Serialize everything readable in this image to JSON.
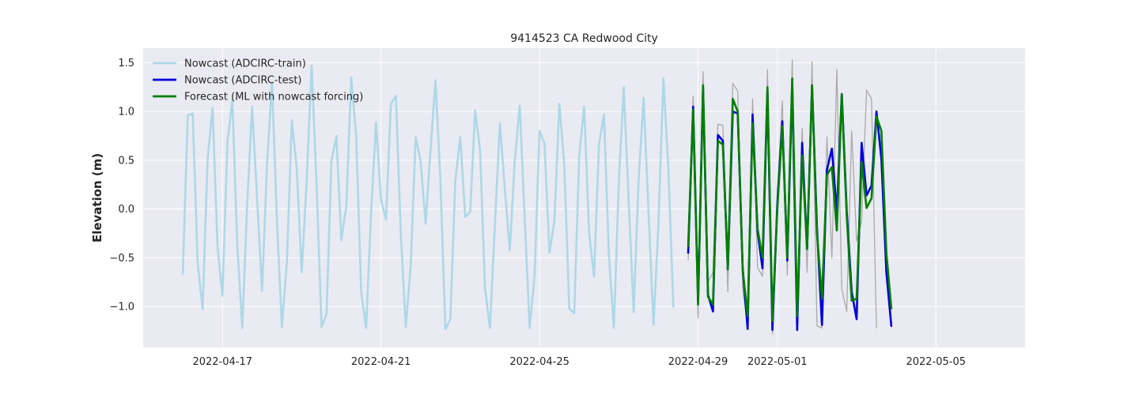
{
  "chart_data": {
    "type": "line",
    "title": "9414523 CA Redwood City",
    "xlabel": "",
    "ylabel": "Elevation (m)",
    "x_axis_type": "date",
    "xlim": [
      "2022-04-15 00:00",
      "2022-05-07 06:00"
    ],
    "ylim": [
      -1.42,
      1.65
    ],
    "x_ticks": [
      "2022-04-17",
      "2022-04-21",
      "2022-04-25",
      "2022-04-29",
      "2022-05-01",
      "2022-05-05"
    ],
    "y_ticks": [
      -1.0,
      -0.5,
      0.0,
      0.5,
      1.0,
      1.5
    ],
    "y_tick_labels": [
      "−1.0",
      "−0.5",
      "0.0",
      "0.5",
      "1.0",
      "1.5"
    ],
    "grid": true,
    "legend_position": "upper-left",
    "background_color": "#eaeaf2",
    "series": [
      {
        "name": "",
        "color": "#aaaaaa",
        "legend": false,
        "points": [
          [
            "2022-04-28 18:00",
            -0.52
          ],
          [
            "2022-04-28 21:00",
            1.16
          ],
          [
            "2022-04-29 00:00",
            -1.12
          ],
          [
            "2022-04-29 03:00",
            1.41
          ],
          [
            "2022-04-29 06:00",
            -0.75
          ],
          [
            "2022-04-29 09:00",
            -0.65
          ],
          [
            "2022-04-29 12:00",
            0.87
          ],
          [
            "2022-04-29 15:00",
            0.86
          ],
          [
            "2022-04-29 18:00",
            -0.85
          ],
          [
            "2022-04-29 21:00",
            1.29
          ],
          [
            "2022-04-30 00:00",
            1.21
          ],
          [
            "2022-04-30 03:00",
            -0.82
          ],
          [
            "2022-04-30 06:00",
            -1.18
          ],
          [
            "2022-04-30 09:00",
            1.13
          ],
          [
            "2022-04-30 12:00",
            -0.6
          ],
          [
            "2022-04-30 15:00",
            -0.69
          ],
          [
            "2022-04-30 18:00",
            1.43
          ],
          [
            "2022-04-30 21:00",
            -1.28
          ],
          [
            "2022-05-01 00:00",
            0.18
          ],
          [
            "2022-05-01 03:00",
            1.11
          ],
          [
            "2022-05-01 06:00",
            -0.68
          ],
          [
            "2022-05-01 09:00",
            1.53
          ],
          [
            "2022-05-01 12:00",
            -1.25
          ],
          [
            "2022-05-01 15:00",
            0.83
          ],
          [
            "2022-05-01 18:00",
            -0.65
          ],
          [
            "2022-05-01 21:00",
            1.51
          ],
          [
            "2022-05-02 00:00",
            -1.2
          ],
          [
            "2022-05-02 03:00",
            -1.22
          ],
          [
            "2022-05-02 06:00",
            0.74
          ],
          [
            "2022-05-02 09:00",
            -0.5
          ],
          [
            "2022-05-02 12:00",
            1.43
          ],
          [
            "2022-05-02 15:00",
            -0.82
          ],
          [
            "2022-05-02 18:00",
            -1.05
          ],
          [
            "2022-05-02 21:00",
            0.8
          ],
          [
            "2022-05-03 00:00",
            -0.33
          ],
          [
            "2022-05-03 03:00",
            -0.13
          ],
          [
            "2022-05-03 06:00",
            1.22
          ],
          [
            "2022-05-03 09:00",
            1.13
          ],
          [
            "2022-05-03 12:00",
            -1.22
          ]
        ]
      },
      {
        "name": "Nowcast (ADCIRC-train)",
        "color": "#add8e6",
        "legend": true,
        "points": [
          [
            "2022-04-16 00:00",
            -0.66
          ],
          [
            "2022-04-16 03:00",
            0.96
          ],
          [
            "2022-04-16 06:00",
            0.98
          ],
          [
            "2022-04-16 09:00",
            -0.55
          ],
          [
            "2022-04-16 12:00",
            -1.03
          ],
          [
            "2022-04-16 15:00",
            0.5
          ],
          [
            "2022-04-16 18:00",
            1.04
          ],
          [
            "2022-04-16 21:00",
            -0.38
          ],
          [
            "2022-04-17 00:00",
            -0.89
          ],
          [
            "2022-04-17 03:00",
            0.68
          ],
          [
            "2022-04-17 06:00",
            1.12
          ],
          [
            "2022-04-17 09:00",
            -0.38
          ],
          [
            "2022-04-17 12:00",
            -1.22
          ],
          [
            "2022-04-17 15:00",
            0.06
          ],
          [
            "2022-04-17 18:00",
            1.05
          ],
          [
            "2022-04-17 21:00",
            0.1
          ],
          [
            "2022-04-18 00:00",
            -0.84
          ],
          [
            "2022-04-18 03:00",
            0.46
          ],
          [
            "2022-04-18 06:00",
            1.3
          ],
          [
            "2022-04-18 09:00",
            -0.12
          ],
          [
            "2022-04-18 12:00",
            -1.21
          ],
          [
            "2022-04-18 15:00",
            -0.55
          ],
          [
            "2022-04-18 18:00",
            0.91
          ],
          [
            "2022-04-18 21:00",
            0.42
          ],
          [
            "2022-04-19 00:00",
            -0.65
          ],
          [
            "2022-04-19 03:00",
            0.29
          ],
          [
            "2022-04-19 06:00",
            1.47
          ],
          [
            "2022-04-19 09:00",
            0.25
          ],
          [
            "2022-04-19 12:00",
            -1.21
          ],
          [
            "2022-04-19 15:00",
            -1.08
          ],
          [
            "2022-04-19 18:00",
            0.49
          ],
          [
            "2022-04-19 21:00",
            0.75
          ],
          [
            "2022-04-20 00:00",
            -0.32
          ],
          [
            "2022-04-20 03:00",
            0.03
          ],
          [
            "2022-04-20 06:00",
            1.35
          ],
          [
            "2022-04-20 09:00",
            0.74
          ],
          [
            "2022-04-20 12:00",
            -0.85
          ],
          [
            "2022-04-20 15:00",
            -1.22
          ],
          [
            "2022-04-20 18:00",
            -0.04
          ],
          [
            "2022-04-20 21:00",
            0.89
          ],
          [
            "2022-04-21 00:00",
            0.1
          ],
          [
            "2022-04-21 03:00",
            -0.11
          ],
          [
            "2022-04-21 06:00",
            1.08
          ],
          [
            "2022-04-21 09:00",
            1.16
          ],
          [
            "2022-04-21 12:00",
            -0.25
          ],
          [
            "2022-04-21 15:00",
            -1.21
          ],
          [
            "2022-04-21 18:00",
            -0.58
          ],
          [
            "2022-04-21 21:00",
            0.74
          ],
          [
            "2022-04-22 00:00",
            0.49
          ],
          [
            "2022-04-22 03:00",
            -0.15
          ],
          [
            "2022-04-22 06:00",
            0.61
          ],
          [
            "2022-04-22 09:00",
            1.32
          ],
          [
            "2022-04-22 12:00",
            0.29
          ],
          [
            "2022-04-22 15:00",
            -1.23
          ],
          [
            "2022-04-22 18:00",
            -1.13
          ],
          [
            "2022-04-22 21:00",
            0.29
          ],
          [
            "2022-04-23 00:00",
            0.74
          ],
          [
            "2022-04-23 03:00",
            -0.08
          ],
          [
            "2022-04-23 06:00",
            -0.03
          ],
          [
            "2022-04-23 09:00",
            1.01
          ],
          [
            "2022-04-23 12:00",
            0.6
          ],
          [
            "2022-04-23 15:00",
            -0.82
          ],
          [
            "2022-04-23 18:00",
            -1.22
          ],
          [
            "2022-04-23 21:00",
            -0.15
          ],
          [
            "2022-04-24 00:00",
            0.88
          ],
          [
            "2022-04-24 03:00",
            0.2
          ],
          [
            "2022-04-24 06:00",
            -0.42
          ],
          [
            "2022-04-24 09:00",
            0.49
          ],
          [
            "2022-04-24 12:00",
            1.06
          ],
          [
            "2022-04-24 15:00",
            -0.09
          ],
          [
            "2022-04-24 18:00",
            -1.22
          ],
          [
            "2022-04-24 21:00",
            -0.68
          ],
          [
            "2022-04-25 00:00",
            0.8
          ],
          [
            "2022-04-25 03:00",
            0.67
          ],
          [
            "2022-04-25 06:00",
            -0.45
          ],
          [
            "2022-04-25 09:00",
            -0.12
          ],
          [
            "2022-04-25 12:00",
            1.08
          ],
          [
            "2022-04-25 15:00",
            0.45
          ],
          [
            "2022-04-25 18:00",
            -1.02
          ],
          [
            "2022-04-25 21:00",
            -1.07
          ],
          [
            "2022-04-26 00:00",
            0.54
          ],
          [
            "2022-04-26 03:00",
            1.05
          ],
          [
            "2022-04-26 06:00",
            -0.24
          ],
          [
            "2022-04-26 09:00",
            -0.69
          ],
          [
            "2022-04-26 12:00",
            0.67
          ],
          [
            "2022-04-26 15:00",
            0.97
          ],
          [
            "2022-04-26 18:00",
            -0.48
          ],
          [
            "2022-04-26 21:00",
            -1.22
          ],
          [
            "2022-04-27 00:00",
            0.28
          ],
          [
            "2022-04-27 03:00",
            1.25
          ],
          [
            "2022-04-27 06:00",
            0.07
          ],
          [
            "2022-04-27 09:00",
            -1.06
          ],
          [
            "2022-04-27 12:00",
            0.31
          ],
          [
            "2022-04-27 15:00",
            1.14
          ],
          [
            "2022-04-27 18:00",
            -0.03
          ],
          [
            "2022-04-27 21:00",
            -1.19
          ],
          [
            "2022-04-28 00:00",
            -0.15
          ],
          [
            "2022-04-28 03:00",
            1.34
          ],
          [
            "2022-04-28 06:00",
            0.42
          ],
          [
            "2022-04-28 09:00",
            -1.0
          ]
        ]
      },
      {
        "name": "Nowcast (ADCIRC-test)",
        "color": "#0000dd",
        "legend": true,
        "points": [
          [
            "2022-04-28 18:00",
            -0.45
          ],
          [
            "2022-04-28 21:00",
            1.05
          ],
          [
            "2022-04-29 00:00",
            -0.95
          ],
          [
            "2022-04-29 03:00",
            1.24
          ],
          [
            "2022-04-29 06:00",
            -0.88
          ],
          [
            "2022-04-29 09:00",
            -1.05
          ],
          [
            "2022-04-29 12:00",
            0.76
          ],
          [
            "2022-04-29 15:00",
            0.7
          ],
          [
            "2022-04-29 18:00",
            -0.62
          ],
          [
            "2022-04-29 21:00",
            1.0
          ],
          [
            "2022-04-30 00:00",
            0.98
          ],
          [
            "2022-04-30 03:00",
            -0.61
          ],
          [
            "2022-04-30 06:00",
            -1.23
          ],
          [
            "2022-04-30 09:00",
            0.97
          ],
          [
            "2022-04-30 12:00",
            -0.23
          ],
          [
            "2022-04-30 15:00",
            -0.61
          ],
          [
            "2022-04-30 18:00",
            1.22
          ],
          [
            "2022-04-30 21:00",
            -1.24
          ],
          [
            "2022-05-01 00:00",
            0.06
          ],
          [
            "2022-05-01 03:00",
            0.9
          ],
          [
            "2022-05-01 06:00",
            -0.53
          ],
          [
            "2022-05-01 09:00",
            1.28
          ],
          [
            "2022-05-01 12:00",
            -1.24
          ],
          [
            "2022-05-01 15:00",
            0.68
          ],
          [
            "2022-05-01 18:00",
            -0.41
          ],
          [
            "2022-05-01 21:00",
            1.27
          ],
          [
            "2022-05-02 00:00",
            -0.2
          ],
          [
            "2022-05-02 03:00",
            -1.19
          ],
          [
            "2022-05-02 06:00",
            0.4
          ],
          [
            "2022-05-02 09:00",
            0.62
          ],
          [
            "2022-05-02 12:00",
            -0.04
          ],
          [
            "2022-05-02 15:00",
            1.18
          ],
          [
            "2022-05-02 18:00",
            -0.02
          ],
          [
            "2022-05-02 21:00",
            -0.85
          ],
          [
            "2022-05-03 00:00",
            -1.13
          ],
          [
            "2022-05-03 03:00",
            0.68
          ],
          [
            "2022-05-03 06:00",
            0.14
          ],
          [
            "2022-05-03 09:00",
            0.24
          ],
          [
            "2022-05-03 12:00",
            1.0
          ],
          [
            "2022-05-03 15:00",
            0.51
          ],
          [
            "2022-05-03 18:00",
            -0.65
          ],
          [
            "2022-05-03 21:00",
            -1.2
          ]
        ]
      },
      {
        "name": "Forecast (ML with nowcast forcing)",
        "color": "#008000",
        "legend": true,
        "points": [
          [
            "2022-04-28 18:00",
            -0.38
          ],
          [
            "2022-04-28 21:00",
            1.02
          ],
          [
            "2022-04-29 00:00",
            -0.98
          ],
          [
            "2022-04-29 03:00",
            1.27
          ],
          [
            "2022-04-29 06:00",
            -0.9
          ],
          [
            "2022-04-29 09:00",
            -0.98
          ],
          [
            "2022-04-29 12:00",
            0.7
          ],
          [
            "2022-04-29 15:00",
            0.66
          ],
          [
            "2022-04-29 18:00",
            -0.62
          ],
          [
            "2022-04-29 21:00",
            1.13
          ],
          [
            "2022-04-30 00:00",
            1.0
          ],
          [
            "2022-04-30 03:00",
            -0.62
          ],
          [
            "2022-04-30 06:00",
            -1.1
          ],
          [
            "2022-04-30 09:00",
            0.88
          ],
          [
            "2022-04-30 12:00",
            -0.2
          ],
          [
            "2022-04-30 15:00",
            -0.5
          ],
          [
            "2022-04-30 18:00",
            1.25
          ],
          [
            "2022-04-30 21:00",
            -1.15
          ],
          [
            "2022-05-01 00:00",
            0.01
          ],
          [
            "2022-05-01 03:00",
            0.85
          ],
          [
            "2022-05-01 06:00",
            -0.5
          ],
          [
            "2022-05-01 09:00",
            1.34
          ],
          [
            "2022-05-01 12:00",
            -1.1
          ],
          [
            "2022-05-01 15:00",
            0.55
          ],
          [
            "2022-05-01 18:00",
            -0.41
          ],
          [
            "2022-05-01 21:00",
            1.27
          ],
          [
            "2022-05-02 00:00",
            -0.25
          ],
          [
            "2022-05-02 03:00",
            -0.92
          ],
          [
            "2022-05-02 06:00",
            0.35
          ],
          [
            "2022-05-02 09:00",
            0.43
          ],
          [
            "2022-05-02 12:00",
            -0.22
          ],
          [
            "2022-05-02 15:00",
            1.18
          ],
          [
            "2022-05-02 18:00",
            -0.07
          ],
          [
            "2022-05-02 21:00",
            -0.94
          ],
          [
            "2022-05-03 00:00",
            -0.92
          ],
          [
            "2022-05-03 03:00",
            0.48
          ],
          [
            "2022-05-03 06:00",
            0.01
          ],
          [
            "2022-05-03 09:00",
            0.11
          ],
          [
            "2022-05-03 12:00",
            0.95
          ],
          [
            "2022-05-03 15:00",
            0.8
          ],
          [
            "2022-05-03 18:00",
            -0.45
          ],
          [
            "2022-05-03 21:00",
            -1.02
          ]
        ]
      }
    ]
  }
}
